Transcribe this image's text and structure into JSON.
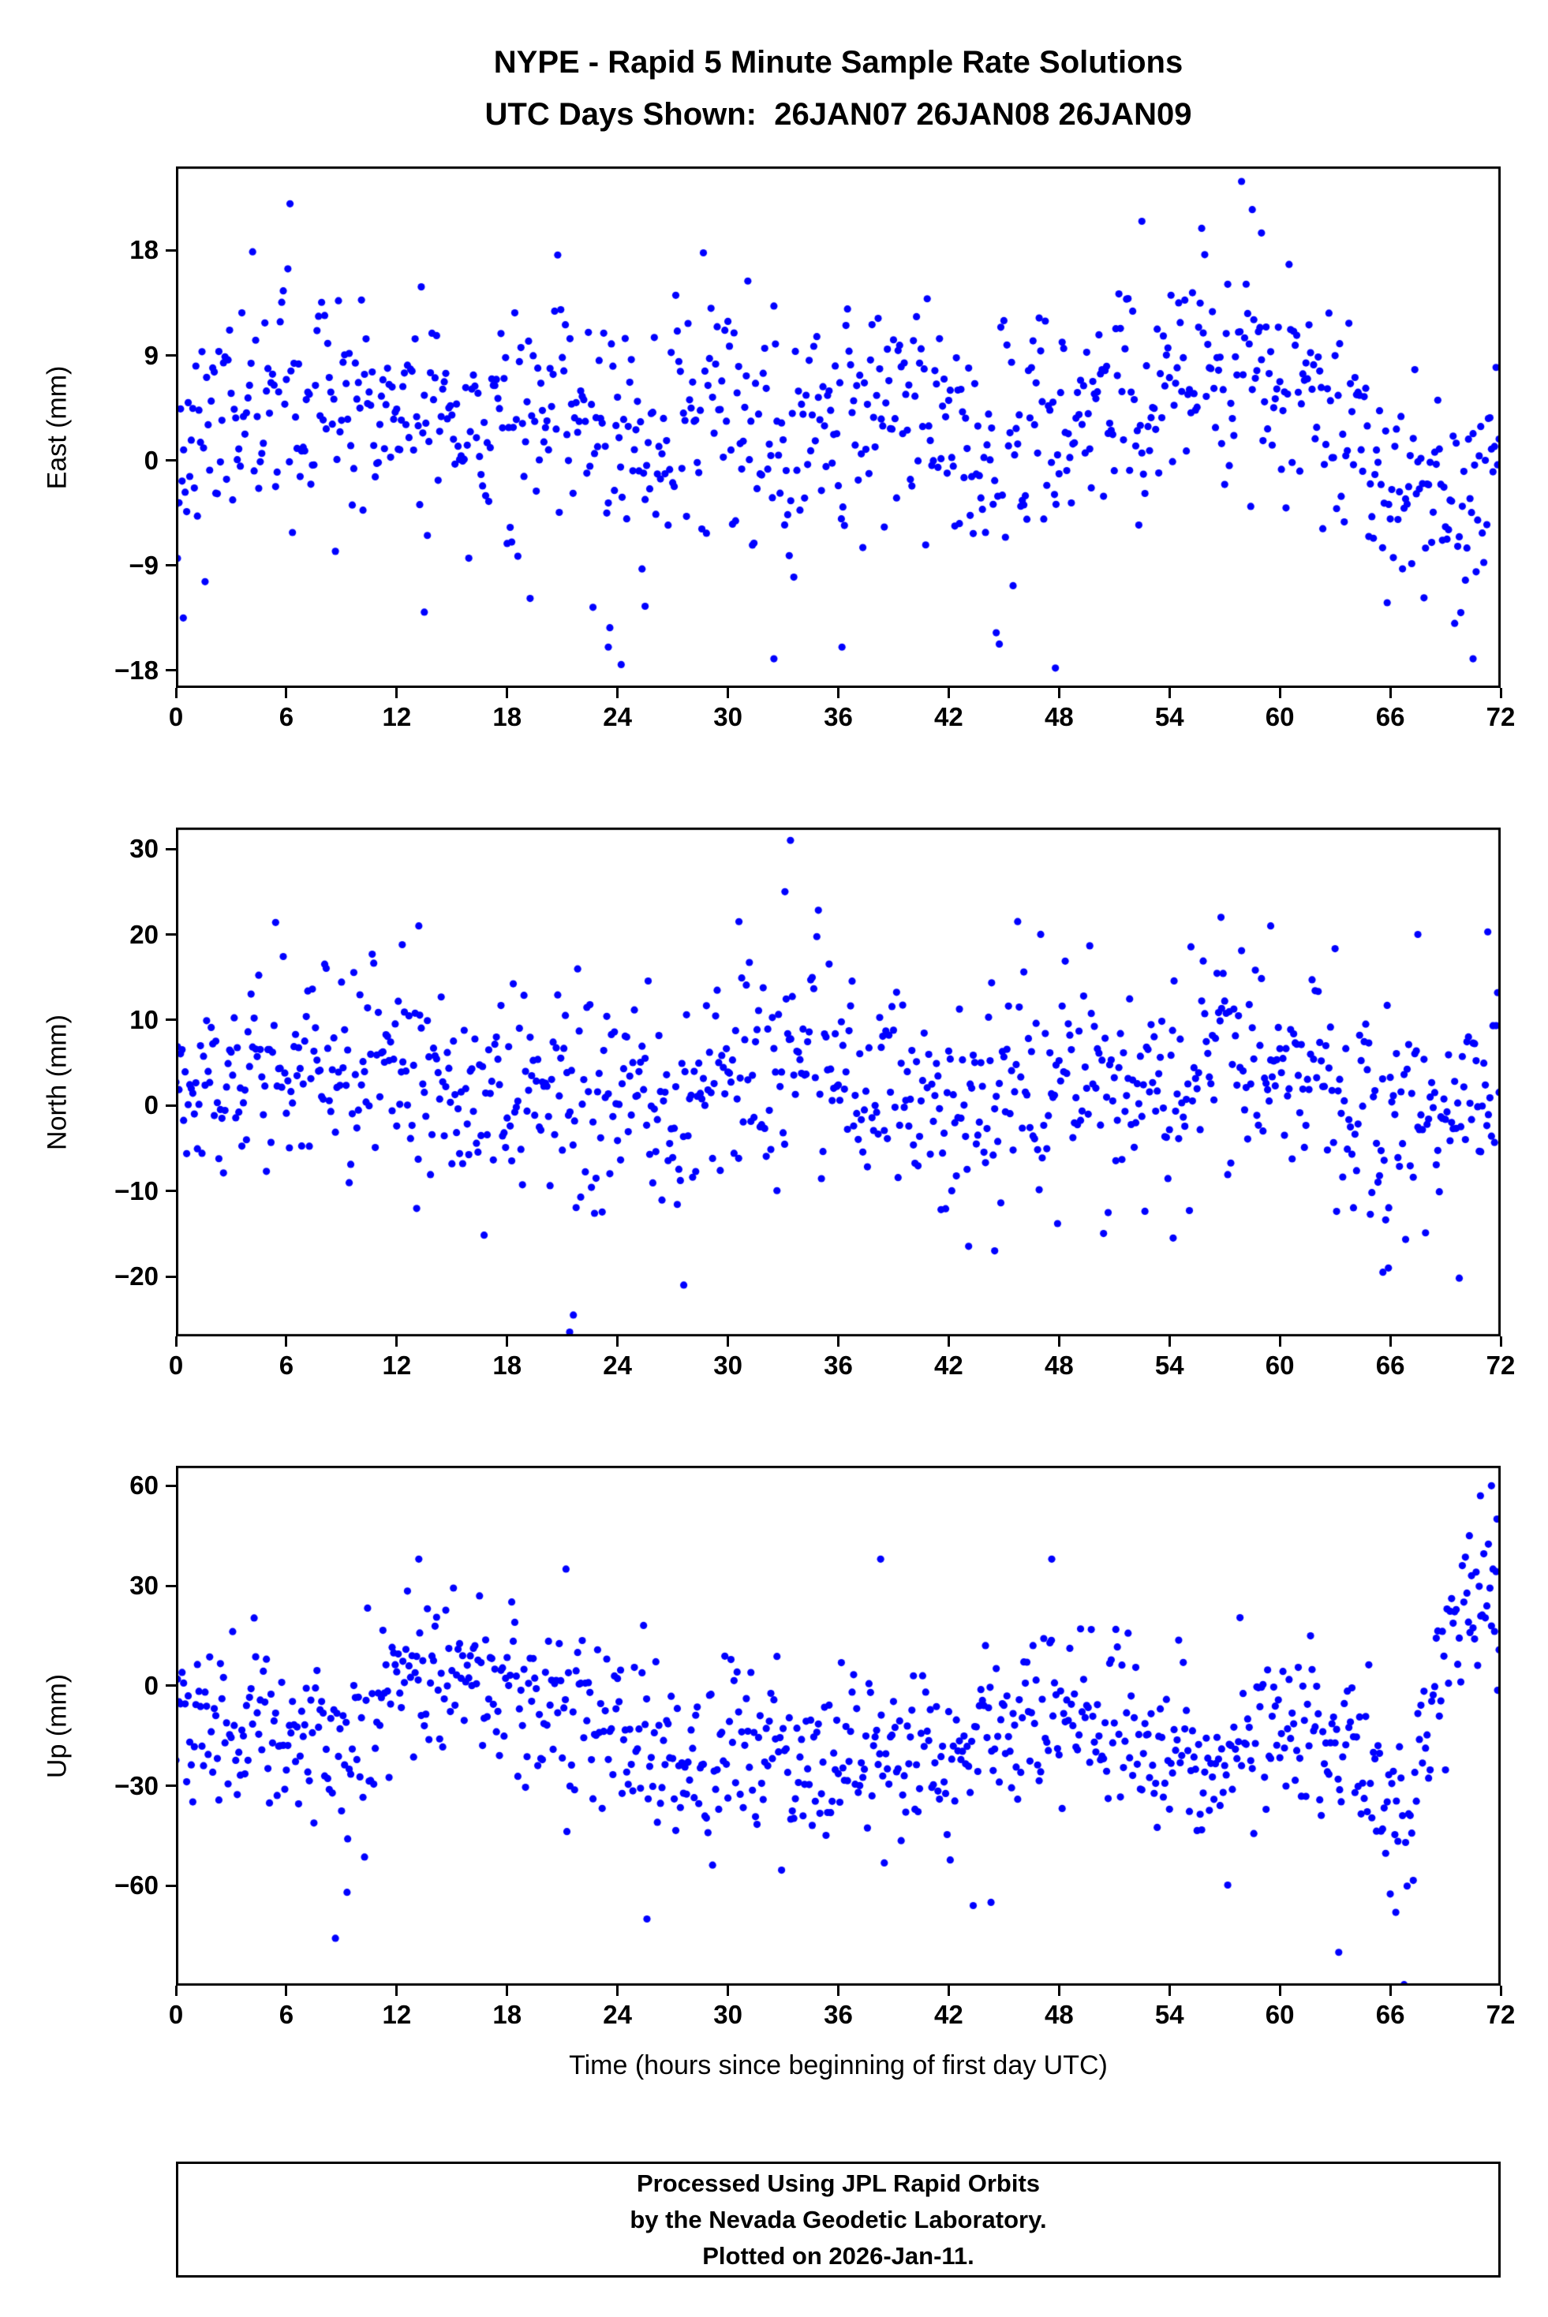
{
  "title": {
    "line1": "NYPE - Rapid 5 Minute Sample Rate Solutions",
    "line2": "UTC Days Shown:  26JAN07 26JAN08 26JAN09"
  },
  "xlabel": "Time (hours since beginning of first day UTC)",
  "footer": {
    "line1": "Processed Using JPL Rapid Orbits",
    "line2": "by the Nevada Geodetic Laboratory.",
    "line3": "Plotted on 2026-Jan-11."
  },
  "colors": {
    "marker": "#0000ff",
    "frame": "#000000"
  },
  "chart_data": [
    {
      "type": "scatter",
      "name": "east",
      "ylabel": "East (mm)",
      "x_range": [
        0,
        72
      ],
      "x_ticks": [
        0,
        6,
        12,
        18,
        24,
        30,
        36,
        42,
        48,
        54,
        60,
        66,
        72
      ],
      "ylim": [
        -19.5,
        25.2
      ],
      "y_ticks": [
        -18,
        -9,
        0,
        9,
        18
      ],
      "n_points": 864,
      "seed": 11,
      "noise_sigma": 5.0,
      "trend": [
        [
          0,
          1
        ],
        [
          3,
          4
        ],
        [
          6,
          5
        ],
        [
          9,
          5
        ],
        [
          12,
          4
        ],
        [
          15,
          3
        ],
        [
          18,
          4
        ],
        [
          21,
          5
        ],
        [
          24,
          0
        ],
        [
          27,
          4
        ],
        [
          30,
          3
        ],
        [
          33,
          2
        ],
        [
          36,
          4
        ],
        [
          39,
          3
        ],
        [
          42,
          2
        ],
        [
          45,
          1
        ],
        [
          48,
          3
        ],
        [
          51,
          6
        ],
        [
          54,
          8
        ],
        [
          57,
          9
        ],
        [
          60,
          8
        ],
        [
          63,
          3
        ],
        [
          66,
          -1
        ],
        [
          68,
          -3
        ],
        [
          70,
          -2
        ],
        [
          72,
          3
        ]
      ],
      "outliers": [
        [
          6.2,
          22
        ],
        [
          58.5,
          21.5
        ],
        [
          52.5,
          20.5
        ],
        [
          59,
          19.5
        ],
        [
          0.4,
          -13.5
        ],
        [
          13.5,
          -13
        ],
        [
          24.2,
          -17.5
        ],
        [
          23.5,
          -16
        ],
        [
          32.5,
          -17
        ],
        [
          36.2,
          -16
        ],
        [
          47.8,
          -17.8
        ],
        [
          70.5,
          -17
        ],
        [
          25.5,
          -12.5
        ]
      ]
    },
    {
      "type": "scatter",
      "name": "north",
      "ylabel": "North (mm)",
      "x_range": [
        0,
        72
      ],
      "x_ticks": [
        0,
        6,
        12,
        18,
        24,
        30,
        36,
        42,
        48,
        54,
        60,
        66,
        72
      ],
      "ylim": [
        -27,
        32.5
      ],
      "y_ticks": [
        -20,
        -10,
        0,
        10,
        20,
        30
      ],
      "n_points": 864,
      "seed": 22,
      "noise_sigma": 6.3,
      "trend": [
        [
          0,
          2
        ],
        [
          3,
          5
        ],
        [
          6,
          4
        ],
        [
          9,
          3
        ],
        [
          12,
          4
        ],
        [
          15,
          2
        ],
        [
          18,
          4
        ],
        [
          21,
          1
        ],
        [
          24,
          2
        ],
        [
          27,
          -1
        ],
        [
          30,
          3
        ],
        [
          33,
          5
        ],
        [
          36,
          4
        ],
        [
          39,
          3
        ],
        [
          42,
          0
        ],
        [
          45,
          2
        ],
        [
          48,
          2
        ],
        [
          51,
          3
        ],
        [
          54,
          2
        ],
        [
          57,
          6
        ],
        [
          60,
          4
        ],
        [
          63,
          2
        ],
        [
          66,
          -3
        ],
        [
          69,
          -2
        ],
        [
          72,
          1
        ]
      ],
      "outliers": [
        [
          33.4,
          31
        ],
        [
          33.1,
          25
        ],
        [
          13.2,
          21
        ],
        [
          30.6,
          21.5
        ],
        [
          12.3,
          18.8
        ],
        [
          56.8,
          22
        ],
        [
          59.5,
          21
        ],
        [
          67.5,
          20
        ],
        [
          71.3,
          20.3
        ],
        [
          21.4,
          -26.5
        ],
        [
          21.6,
          -24.5
        ],
        [
          27.6,
          -21
        ],
        [
          65.6,
          -19.5
        ],
        [
          65.9,
          -19
        ],
        [
          44.5,
          -17
        ],
        [
          54.2,
          -15.5
        ]
      ]
    },
    {
      "type": "scatter",
      "name": "up",
      "ylabel": "Up (mm)",
      "x_range": [
        0,
        72
      ],
      "x_ticks": [
        0,
        6,
        12,
        18,
        24,
        30,
        36,
        42,
        48,
        54,
        60,
        66,
        72
      ],
      "ylim": [
        -90,
        66
      ],
      "y_ticks": [
        -60,
        -30,
        0,
        30,
        60
      ],
      "n_points": 864,
      "seed": 33,
      "noise_sigma": 12,
      "trend": [
        [
          0,
          -8
        ],
        [
          2,
          -18
        ],
        [
          4,
          -15
        ],
        [
          6,
          -12
        ],
        [
          8,
          -18
        ],
        [
          10,
          -15
        ],
        [
          12,
          -2
        ],
        [
          14,
          3
        ],
        [
          16,
          0
        ],
        [
          18,
          -5
        ],
        [
          20,
          -4
        ],
        [
          22,
          -10
        ],
        [
          24,
          -18
        ],
        [
          26,
          -25
        ],
        [
          28,
          -20
        ],
        [
          30,
          -18
        ],
        [
          32,
          -15
        ],
        [
          34,
          -25
        ],
        [
          36,
          -22
        ],
        [
          38,
          -18
        ],
        [
          40,
          -20
        ],
        [
          42,
          -18
        ],
        [
          44,
          -18
        ],
        [
          46,
          -10
        ],
        [
          48,
          -8
        ],
        [
          50,
          -12
        ],
        [
          52,
          -15
        ],
        [
          54,
          -18
        ],
        [
          56,
          -25
        ],
        [
          58,
          -15
        ],
        [
          60,
          -10
        ],
        [
          62,
          -15
        ],
        [
          64,
          -20
        ],
        [
          66,
          -35
        ],
        [
          67,
          -40
        ],
        [
          68,
          -10
        ],
        [
          69,
          10
        ],
        [
          70,
          22
        ],
        [
          71,
          30
        ],
        [
          72,
          26
        ]
      ],
      "outliers": [
        [
          13.2,
          38
        ],
        [
          21.2,
          35
        ],
        [
          47.6,
          38
        ],
        [
          38.3,
          38
        ],
        [
          63.2,
          -80
        ],
        [
          25.6,
          -70
        ],
        [
          44.3,
          -65
        ],
        [
          66.3,
          -68
        ],
        [
          9.3,
          -62
        ],
        [
          71.5,
          60
        ],
        [
          70.9,
          57
        ],
        [
          71.8,
          50
        ],
        [
          70.3,
          45
        ]
      ]
    }
  ]
}
